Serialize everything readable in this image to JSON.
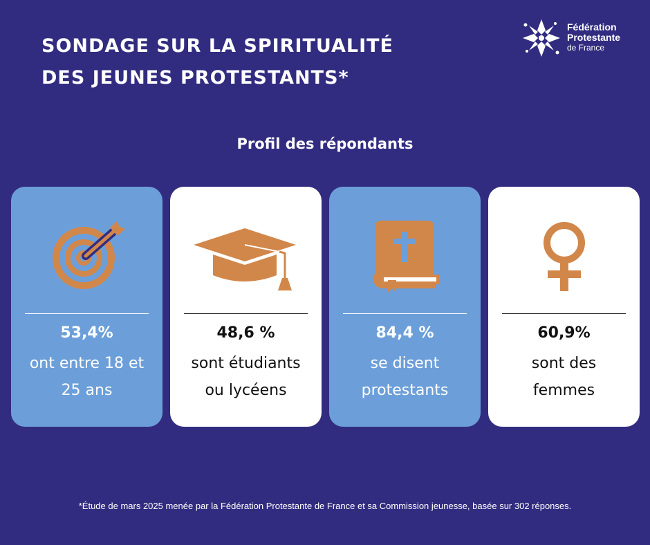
{
  "header": {
    "title_line1": "SONDAGE SUR LA SPIRITUALITÉ",
    "title_line2": "DES JEUNES PROTESTANTS*"
  },
  "logo": {
    "icon": "cross-star-logo-icon",
    "line1": "Fédération",
    "line2": "Protestante",
    "line3": "de France"
  },
  "subtitle": "Profil des répondants",
  "colors": {
    "background": "#322c80",
    "card_blue": "#6c9fd9",
    "card_white": "#ffffff",
    "icon_orange": "#d2874a"
  },
  "cards": [
    {
      "icon": "target-icon",
      "percent": "53,4%",
      "desc_line1": "ont entre 18 et",
      "desc_line2": "25 ans"
    },
    {
      "icon": "graduation-cap-icon",
      "percent": "48,6 %",
      "desc_line1": "sont étudiants",
      "desc_line2": "ou lycéens"
    },
    {
      "icon": "bible-icon",
      "percent": "84,4 %",
      "desc_line1": "se disent",
      "desc_line2": "protestants"
    },
    {
      "icon": "female-symbol-icon",
      "percent": "60,9%",
      "desc_line1": "sont des",
      "desc_line2": "femmes"
    }
  ],
  "footnote": "*Étude de mars 2025 menée par la Fédération Protestante de France et sa Commission jeunesse, basée sur 302 réponses."
}
